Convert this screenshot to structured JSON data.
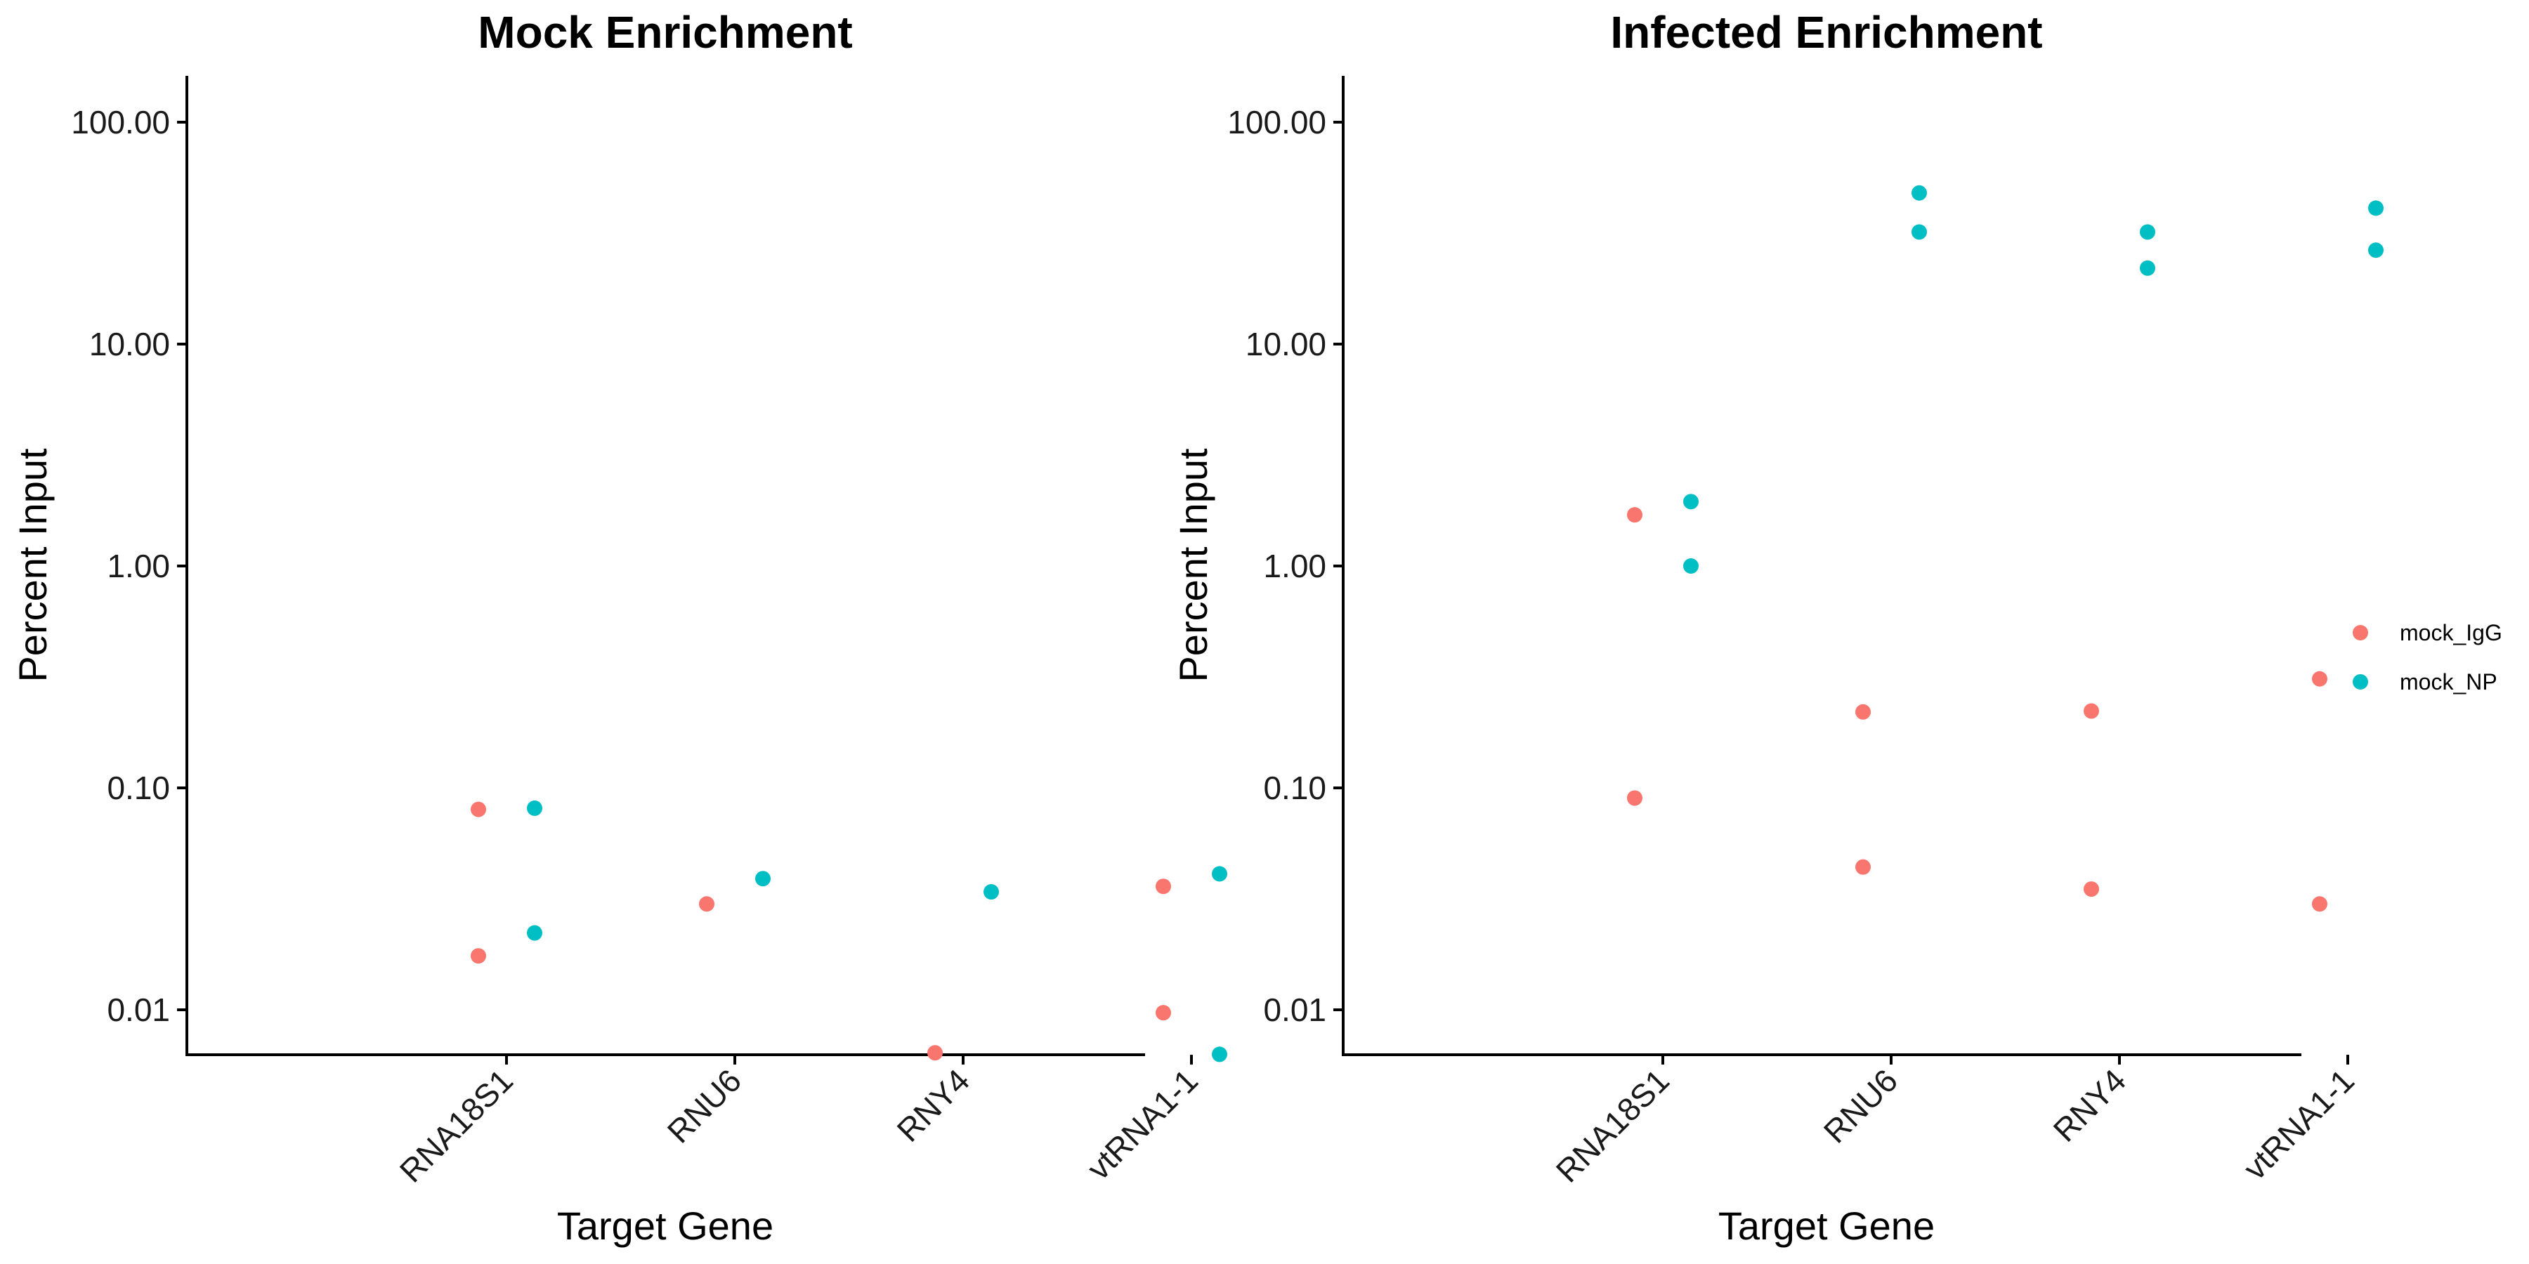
{
  "chart_data": [
    {
      "type": "scatter",
      "title": "Mock Enrichment",
      "xlabel": "Target Gene",
      "ylabel": "Percent Input",
      "yscale": "log10",
      "ylim": [
        0.0062,
        160
      ],
      "yticks": [
        "0.01",
        "0.10",
        "1.00",
        "10.00",
        "100.00"
      ],
      "categories": [
        "RNA18S1",
        "RNU6",
        "RNY4",
        "vtRNA1-1"
      ],
      "grid": false,
      "series": [
        {
          "name": "mock_IgG",
          "color": "#F8766D",
          "points": [
            {
              "x": "RNA18S1",
              "y": 0.08
            },
            {
              "x": "RNA18S1",
              "y": 0.0175
            },
            {
              "x": "RNU6",
              "y": 0.03
            },
            {
              "x": "RNY4",
              "y": 0.0064
            },
            {
              "x": "vtRNA1-1",
              "y": 0.036
            },
            {
              "x": "vtRNA1-1",
              "y": 0.0097
            }
          ]
        },
        {
          "name": "mock_NP",
          "color": "#00BFC4",
          "points": [
            {
              "x": "RNA18S1",
              "y": 0.081
            },
            {
              "x": "RNA18S1",
              "y": 0.0222
            },
            {
              "x": "RNU6",
              "y": 0.039
            },
            {
              "x": "RNY4",
              "y": 0.034
            },
            {
              "x": "vtRNA1-1",
              "y": 0.041
            },
            {
              "x": "vtRNA1-1",
              "y": 0.0063
            }
          ]
        }
      ]
    },
    {
      "type": "scatter",
      "title": "Infected Enrichment",
      "xlabel": "Target Gene",
      "ylabel": "Percent Input",
      "yscale": "log10",
      "ylim": [
        0.0062,
        160
      ],
      "yticks": [
        "0.01",
        "0.10",
        "1.00",
        "10.00",
        "100.00"
      ],
      "categories": [
        "RNA18S1",
        "RNU6",
        "RNY4",
        "vtRNA1-1"
      ],
      "grid": false,
      "series": [
        {
          "name": "mock_IgG",
          "color": "#F8766D",
          "points": [
            {
              "x": "RNA18S1",
              "y": 1.7
            },
            {
              "x": "RNA18S1",
              "y": 0.09
            },
            {
              "x": "RNU6",
              "y": 0.22
            },
            {
              "x": "RNU6",
              "y": 0.044
            },
            {
              "x": "RNY4",
              "y": 0.222
            },
            {
              "x": "RNY4",
              "y": 0.035
            },
            {
              "x": "vtRNA1-1",
              "y": 0.31
            },
            {
              "x": "vtRNA1-1",
              "y": 0.03
            }
          ]
        },
        {
          "name": "mock_NP",
          "color": "#00BFC4",
          "points": [
            {
              "x": "RNA18S1",
              "y": 1.95
            },
            {
              "x": "RNA18S1",
              "y": 1.0
            },
            {
              "x": "RNU6",
              "y": 48
            },
            {
              "x": "RNU6",
              "y": 32
            },
            {
              "x": "RNY4",
              "y": 32
            },
            {
              "x": "RNY4",
              "y": 22
            },
            {
              "x": "vtRNA1-1",
              "y": 41
            },
            {
              "x": "vtRNA1-1",
              "y": 26.5
            }
          ]
        }
      ]
    }
  ],
  "legend": {
    "placement": "right",
    "items": [
      {
        "label": "mock_IgG",
        "color": "#F8766D"
      },
      {
        "label": "mock_NP",
        "color": "#00BFC4"
      }
    ]
  }
}
